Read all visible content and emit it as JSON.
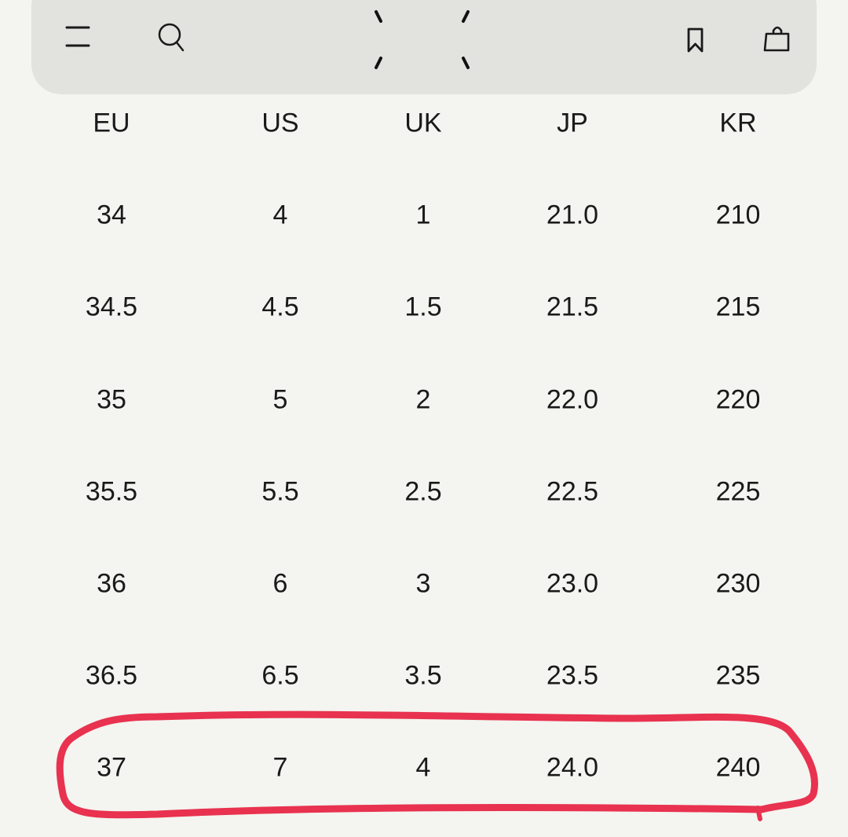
{
  "header": {
    "icons": [
      "menu-icon",
      "search-icon",
      "logo-icon",
      "bookmark-icon",
      "shopping-bag-icon"
    ]
  },
  "size_table": {
    "columns": [
      "EU",
      "US",
      "UK",
      "JP",
      "KR"
    ],
    "rows": [
      [
        "34",
        "4",
        "1",
        "21.0",
        "210"
      ],
      [
        "34.5",
        "4.5",
        "1.5",
        "21.5",
        "215"
      ],
      [
        "35",
        "5",
        "2",
        "22.0",
        "220"
      ],
      [
        "35.5",
        "5.5",
        "2.5",
        "22.5",
        "225"
      ],
      [
        "36",
        "6",
        "3",
        "23.0",
        "230"
      ],
      [
        "36.5",
        "6.5",
        "3.5",
        "23.5",
        "235"
      ],
      [
        "37",
        "7",
        "4",
        "24.0",
        "240"
      ]
    ],
    "highlighted_row": 6
  },
  "colors": {
    "background": "#f4f4f0",
    "header_bar": "#e2e2de",
    "highlight_annotation": "#e8324f"
  }
}
